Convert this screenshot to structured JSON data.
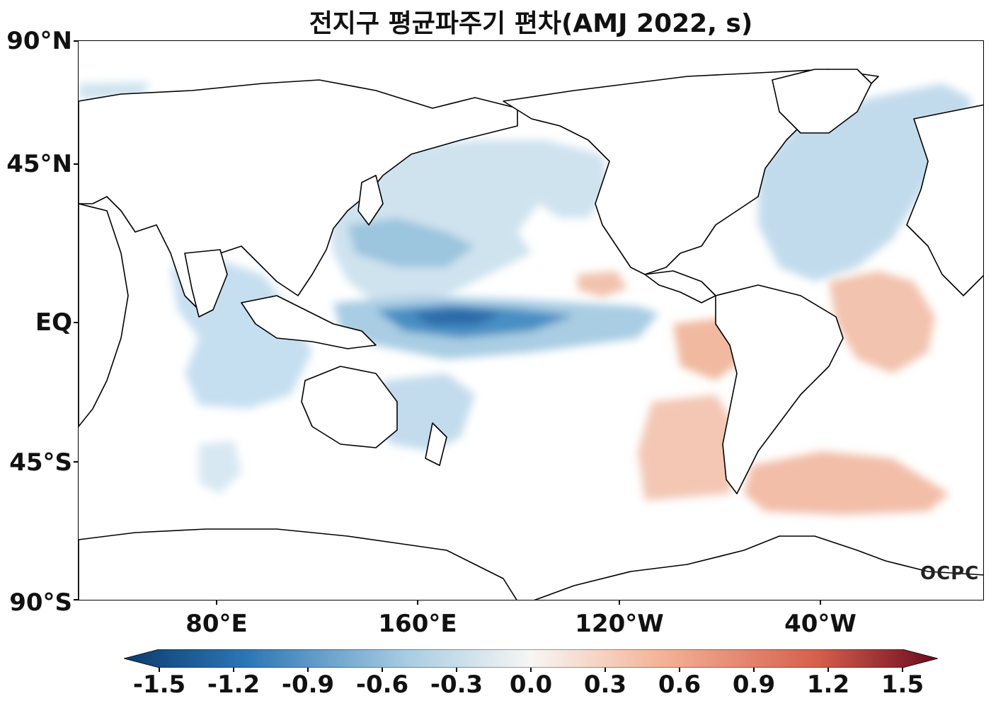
{
  "title": "전지구 평균파주기 편차(AMJ 2022, s)",
  "logo": "OCPC",
  "map": {
    "lat_labels": [
      "90°N",
      "45°N",
      "EQ",
      "45°S",
      "90°S"
    ],
    "lon_labels": [
      "80°E",
      "160°E",
      "120°W",
      "40°W"
    ]
  },
  "colorbar": {
    "labels": [
      "-1.5",
      "-1.2",
      "-0.9",
      "-0.6",
      "-0.3",
      "0.0",
      "0.3",
      "0.6",
      "0.9",
      "1.2",
      "1.5"
    ],
    "min": -1.5,
    "max": 1.5,
    "colors": {
      "neg_strong": "#0b3c6e",
      "neg_mid": "#2c76b5",
      "neg_light": "#a9cde3",
      "neutral": "#f7f6f4",
      "pos_light": "#f5b79c",
      "pos_mid": "#d6604d",
      "pos_strong": "#6b0a1f"
    }
  }
}
